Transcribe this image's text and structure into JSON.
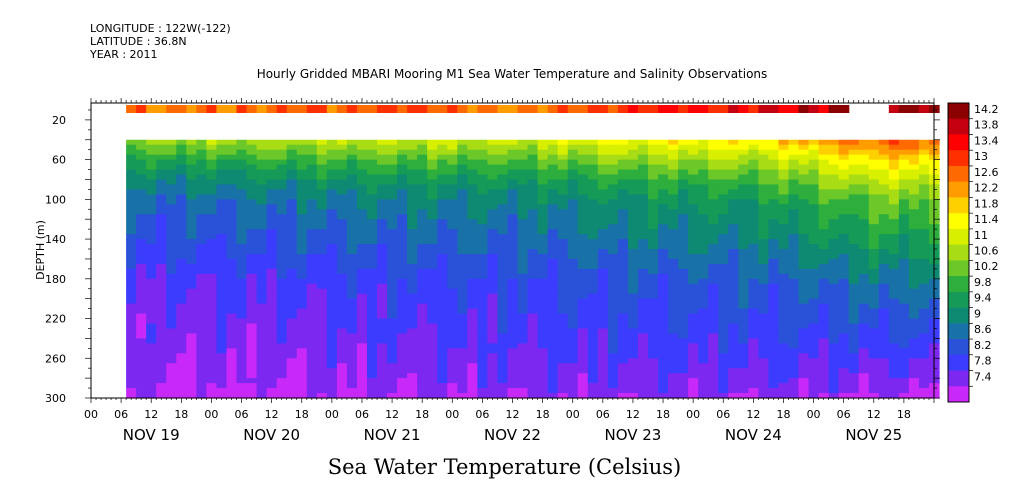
{
  "header": {
    "longitude": "LONGITUDE : 122W(-122)",
    "latitude": "LATITUDE : 36.8N",
    "year": "YEAR : 2011",
    "title": "Hourly Gridded MBARI Mooring M1 Sea Water Temperature and Salinity Observations"
  },
  "chart_data": {
    "type": "heatmap",
    "title": "Hourly Gridded MBARI Mooring M1 Sea Water Temperature and Salinity Observations",
    "xlabel": "Sea Water Temperature (Celsius)",
    "ylabel": "DEPTH (m)",
    "ylim": [
      300,
      0
    ],
    "y_ticks": [
      20,
      60,
      100,
      140,
      180,
      220,
      260,
      300
    ],
    "x_hour_ticks": [
      "00",
      "06",
      "12",
      "18",
      "00",
      "06",
      "12",
      "18",
      "00",
      "06",
      "12",
      "18",
      "00",
      "06",
      "12",
      "18",
      "00",
      "06",
      "12",
      "18",
      "00",
      "06",
      "12",
      "18",
      "00",
      "06",
      "12",
      "18"
    ],
    "x_day_labels": [
      "NOV 19",
      "NOV 20",
      "NOV 21",
      "NOV 22",
      "NOV 23",
      "NOV 24",
      "NOV 25"
    ],
    "x_range_hours": [
      0,
      168
    ],
    "data_start_hour": 7,
    "colorbar_labels": [
      "14.2",
      "13.8",
      "13.4",
      "13",
      "12.6",
      "12.2",
      "11.8",
      "11.4",
      "11",
      "10.6",
      "10.2",
      "9.8",
      "9.4",
      "9",
      "8.6",
      "8.2",
      "7.8",
      "7.4"
    ],
    "colorbar_colors": [
      "#8b0000",
      "#c40010",
      "#ff0000",
      "#ff3000",
      "#ff6a00",
      "#ff9c00",
      "#ffd000",
      "#ffff00",
      "#d8f000",
      "#a8dc14",
      "#6cc828",
      "#2eae3c",
      "#159a58",
      "#0e8a72",
      "#1872a8",
      "#2a52d8",
      "#3c3cff",
      "#7c28f0",
      "#c828f8"
    ],
    "surface_depth_m": 10,
    "surface_missing_hours": [
      [
        151,
        159
      ]
    ],
    "depth_profile_top_m": 40,
    "temperature_profile": {
      "depths_m": [
        40,
        50,
        60,
        70,
        80,
        90,
        100,
        120,
        140,
        160,
        180,
        200,
        220,
        240,
        260,
        280,
        290,
        300
      ],
      "values": [
        11.0,
        10.6,
        10.2,
        9.9,
        9.6,
        9.4,
        9.2,
        9.0,
        8.8,
        8.6,
        8.4,
        8.3,
        8.2,
        8.1,
        8.0,
        7.9,
        7.8,
        7.7
      ]
    },
    "temperature_by_day": [
      {
        "day": "NOV 19",
        "surface": 12.5,
        "at_40m": 10.6,
        "at_300m": 7.6
      },
      {
        "day": "NOV 20",
        "surface": 12.6,
        "at_40m": 10.8,
        "at_300m": 7.6
      },
      {
        "day": "NOV 21",
        "surface": 12.8,
        "at_40m": 11.0,
        "at_300m": 7.7
      },
      {
        "day": "NOV 22",
        "surface": 12.4,
        "at_40m": 11.0,
        "at_300m": 7.8
      },
      {
        "day": "NOV 23",
        "surface": 13.0,
        "at_40m": 11.4,
        "at_300m": 7.8
      },
      {
        "day": "NOV 24",
        "surface": 13.4,
        "at_40m": 11.6,
        "at_300m": 7.8
      },
      {
        "day": "NOV 25",
        "surface": 14.0,
        "at_40m": 12.6,
        "at_300m": 7.6
      }
    ]
  }
}
